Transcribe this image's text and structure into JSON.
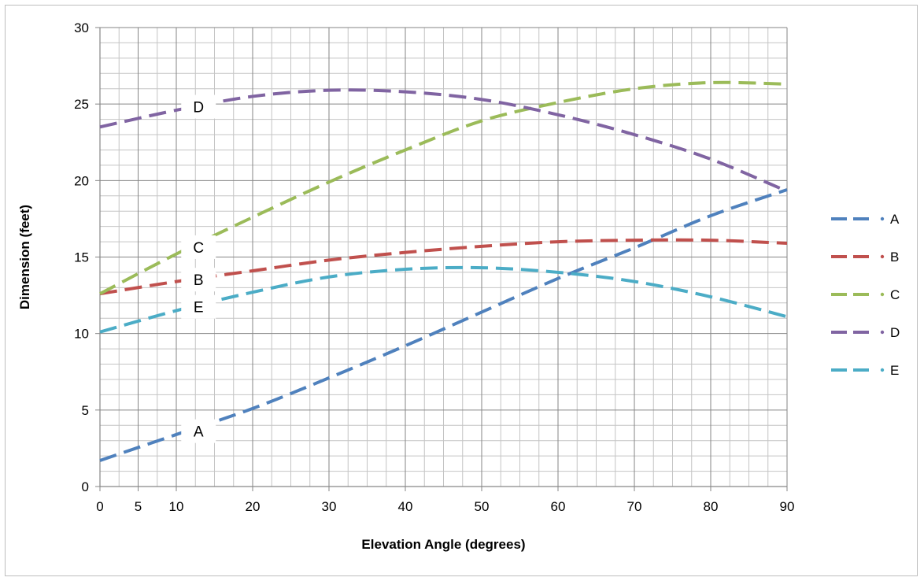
{
  "chart_data": {
    "type": "line",
    "title": "",
    "xlabel": "Elevation Angle (degrees)",
    "ylabel": "Dimension (feet)",
    "xlim": [
      0,
      90
    ],
    "ylim": [
      0,
      30
    ],
    "x_ticks": [
      0,
      5,
      10,
      20,
      30,
      40,
      50,
      60,
      70,
      80,
      90
    ],
    "y_ticks": [
      0,
      5,
      10,
      15,
      20,
      25,
      30
    ],
    "x_minor_step": 2.5,
    "y_minor_step": 1,
    "grid": true,
    "legend_position": "right",
    "line_style": "dashed",
    "series": [
      {
        "name": "A",
        "color": "#4F81BD",
        "x": [
          0,
          10,
          20,
          30,
          40,
          50,
          60,
          70,
          80,
          90
        ],
        "y": [
          1.7,
          3.4,
          5.1,
          7.1,
          9.2,
          11.4,
          13.6,
          15.6,
          17.7,
          19.4
        ],
        "label_at": 12.5
      },
      {
        "name": "B",
        "color": "#C0504D",
        "x": [
          0,
          10,
          20,
          30,
          40,
          50,
          60,
          70,
          80,
          90
        ],
        "y": [
          12.6,
          13.4,
          14.1,
          14.8,
          15.3,
          15.7,
          16.0,
          16.1,
          16.1,
          15.9
        ],
        "label_at": 12.5
      },
      {
        "name": "C",
        "color": "#9BBB59",
        "x": [
          0,
          10,
          20,
          30,
          40,
          50,
          60,
          70,
          80,
          90
        ],
        "y": [
          12.6,
          15.2,
          17.6,
          19.9,
          22.0,
          23.9,
          25.1,
          26.0,
          26.4,
          26.3
        ],
        "label_at": 12.5
      },
      {
        "name": "D",
        "color": "#8064A2",
        "x": [
          0,
          10,
          20,
          30,
          40,
          50,
          60,
          70,
          80,
          90
        ],
        "y": [
          23.5,
          24.6,
          25.5,
          25.9,
          25.8,
          25.3,
          24.3,
          23.0,
          21.4,
          19.3
        ],
        "label_at": 12.5
      },
      {
        "name": "E",
        "color": "#4BACC6",
        "x": [
          0,
          10,
          20,
          30,
          40,
          50,
          60,
          70,
          80,
          90
        ],
        "y": [
          10.1,
          11.5,
          12.7,
          13.7,
          14.2,
          14.3,
          14.0,
          13.4,
          12.4,
          11.1
        ],
        "label_at": 12.5
      }
    ]
  }
}
